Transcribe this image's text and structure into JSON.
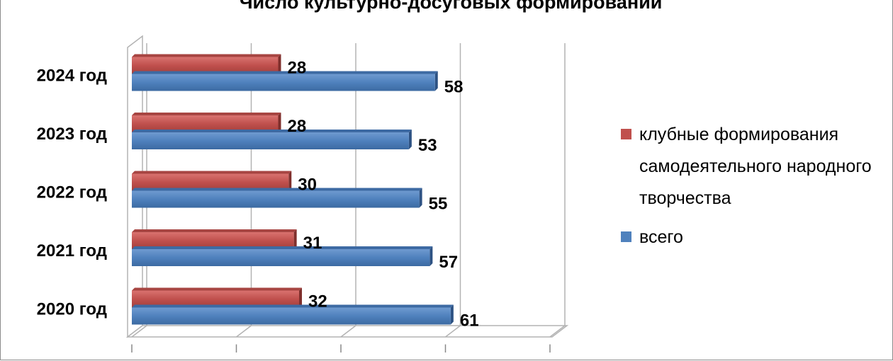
{
  "chart_data": {
    "type": "bar",
    "orientation": "horizontal",
    "title": "Число культурно-досуговых формирований",
    "categories": [
      "2024 год",
      "2023 год",
      "2022 год",
      "2021 год",
      "2020 год"
    ],
    "series": [
      {
        "name": "клубные формирования самодеятельного народного творчества",
        "values": [
          28,
          28,
          30,
          31,
          32
        ],
        "color": "#C0504D"
      },
      {
        "name": "всего",
        "values": [
          58,
          53,
          55,
          57,
          61
        ],
        "color": "#4F81BD"
      }
    ],
    "xlim": [
      0,
      80
    ],
    "grid": true,
    "legend": "right"
  }
}
